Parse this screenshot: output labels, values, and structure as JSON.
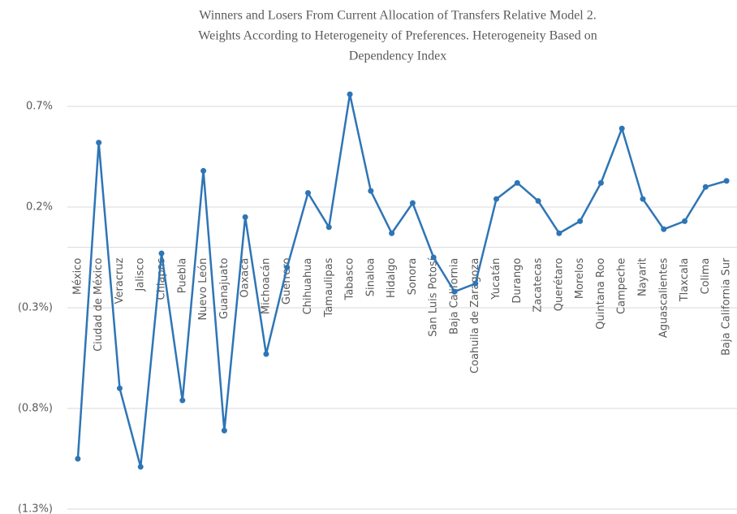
{
  "chart_data": {
    "type": "line",
    "title": [
      "Winners and Losers From Current Allocation of Transfers Relative Model 2.",
      "Weights According to Heterogeneity of Preferences. Heterogeneity Based on",
      "Dependency Index"
    ],
    "categories": [
      "México",
      "Ciudad de México",
      "Veracruz",
      "Jalisco",
      "Chiapas",
      "Puebla",
      "Nuevo León",
      "Guanajuato",
      "Oaxaca",
      "Michoacán",
      "Guerrero",
      "Chihuahua",
      "Tamaulipas",
      "Tabasco",
      "Sinaloa",
      "Hidalgo",
      "Sonora",
      "San Luis Potosí",
      "Baja California",
      "Coahuila de Zaragoza",
      "Yucatán",
      "Durango",
      "Zacatecas",
      "Querétaro",
      "Morelos",
      "Quintana Roo",
      "Campeche",
      "Nayarit",
      "Aguascalientes",
      "Tlaxcala",
      "Colima",
      "Baja California Sur"
    ],
    "series": [
      {
        "color": "#2e75b6",
        "values": [
          -1.05,
          0.52,
          -0.7,
          -1.09,
          -0.03,
          -0.76,
          0.38,
          -0.91,
          0.15,
          -0.53,
          -0.1,
          0.27,
          0.1,
          0.76,
          0.28,
          0.07,
          0.22,
          -0.05,
          -0.22,
          -0.18,
          0.24,
          0.32,
          0.23,
          0.07,
          0.13,
          0.32,
          0.59,
          0.24,
          0.09,
          0.13,
          0.3,
          0.33
        ]
      }
    ],
    "ylim": [
      -1.3,
      0.8
    ],
    "yticks": [
      {
        "value": -1.3,
        "label": "(1.3%)"
      },
      {
        "value": -0.8,
        "label": "(0.8%)"
      },
      {
        "value": -0.3,
        "label": "(0.3%)"
      },
      {
        "value": 0.2,
        "label": "0.2%"
      },
      {
        "value": 0.7,
        "label": "0.7%"
      }
    ],
    "grid": true
  }
}
